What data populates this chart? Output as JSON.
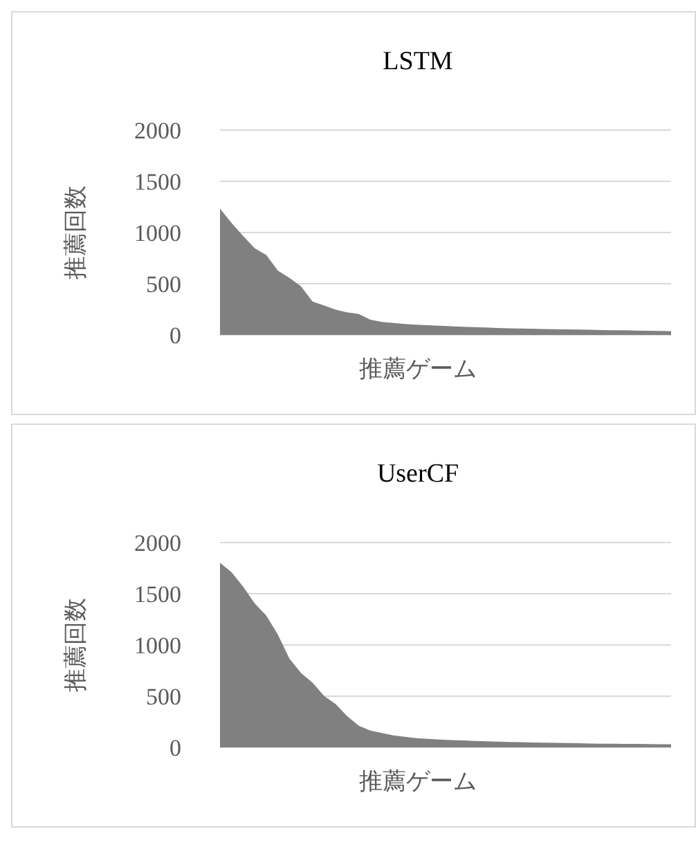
{
  "chart_data": [
    {
      "type": "area",
      "title": "LSTM",
      "xlabel": "推薦ゲーム",
      "ylabel": "推薦回数",
      "categories": [
        null,
        null,
        null,
        null,
        null,
        null,
        null,
        null,
        null,
        null,
        null,
        null,
        null,
        null,
        null,
        null,
        null,
        null,
        null,
        null,
        null,
        null,
        null,
        null,
        null,
        null,
        null,
        null,
        null,
        null,
        null,
        null,
        null,
        null,
        null,
        null,
        null,
        null,
        null,
        null
      ],
      "values": [
        1233,
        1093,
        967,
        847,
        781,
        628,
        558,
        474,
        326,
        288,
        247,
        219,
        205,
        149,
        126,
        116,
        107,
        100,
        95,
        90,
        85,
        80,
        76,
        72,
        68,
        65,
        62,
        60,
        58,
        56,
        54,
        52,
        50,
        48,
        46,
        45,
        43,
        41,
        39,
        37
      ],
      "color": "#808080",
      "ylim": [
        0,
        2000
      ],
      "yticks": [
        0,
        500,
        1000,
        1500,
        2000
      ],
      "grid": "y"
    },
    {
      "type": "area",
      "title": "UserCF",
      "xlabel": "推薦ゲーム",
      "ylabel": "推薦回数",
      "categories": [
        null,
        null,
        null,
        null,
        null,
        null,
        null,
        null,
        null,
        null,
        null,
        null,
        null,
        null,
        null,
        null,
        null,
        null,
        null,
        null,
        null,
        null,
        null,
        null,
        null,
        null,
        null,
        null,
        null,
        null,
        null,
        null,
        null,
        null,
        null,
        null,
        null,
        null,
        null,
        null
      ],
      "values": [
        1803,
        1710,
        1569,
        1405,
        1288,
        1101,
        867,
        726,
        632,
        501,
        422,
        304,
        211,
        164,
        141,
        117,
        103,
        89,
        82,
        76,
        71,
        67,
        63,
        59,
        56,
        53,
        50,
        48,
        46,
        44,
        42,
        40,
        38,
        36,
        35,
        34,
        33,
        32,
        31,
        30
      ],
      "color": "#808080",
      "ylim": [
        0,
        2000
      ],
      "yticks": [
        0,
        500,
        1000,
        1500,
        2000
      ],
      "grid": "y"
    }
  ]
}
